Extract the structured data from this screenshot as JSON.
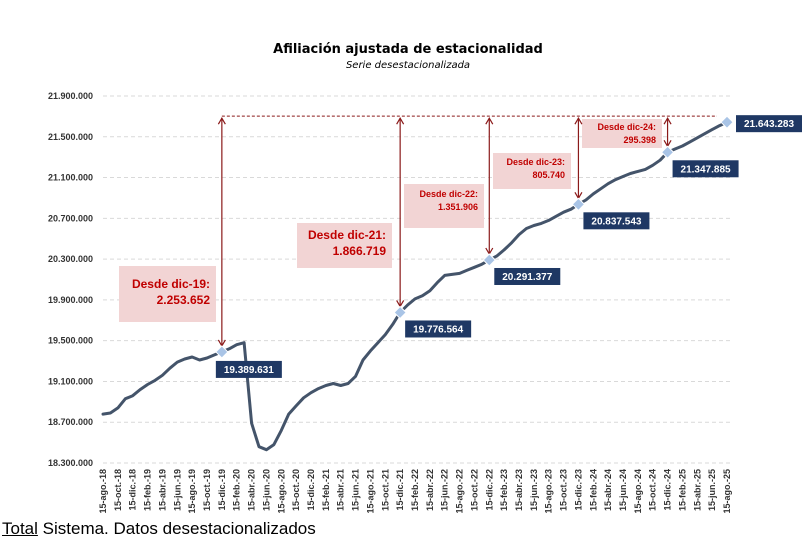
{
  "footer": {
    "first_word": "Total",
    "rest": " Sistema. Datos desestacionalizados"
  },
  "chart_data": {
    "type": "line",
    "title": "Afiliación ajustada de estacionalidad",
    "subtitle": "Serie desestacionalizada",
    "ylim": [
      18300000,
      21900000
    ],
    "yticks": [
      18300000,
      18700000,
      19100000,
      19500000,
      19900000,
      20300000,
      20700000,
      21100000,
      21500000,
      21900000
    ],
    "ytick_labels": [
      "18.300.000",
      "18.700.000",
      "19.100.000",
      "19.500.000",
      "19.900.000",
      "20.300.000",
      "20.700.000",
      "21.100.000",
      "21.500.000",
      "21.900.000"
    ],
    "grid": "horizontal-dashed",
    "x_start": "2018-08-15",
    "xtick_labels": [
      "15-ago.-18",
      "15-oct.-18",
      "15-dic.-18",
      "15-feb.-19",
      "15-abr.-19",
      "15-jun.-19",
      "15-ago.-19",
      "15-oct.-19",
      "15-dic.-19",
      "15-feb.-20",
      "15-abr.-20",
      "15-jun.-20",
      "15-ago.-20",
      "15-oct.-20",
      "15-dic.-20",
      "15-feb.-21",
      "15-abr.-21",
      "15-jun.-21",
      "15-ago.-21",
      "15-oct.-21",
      "15-dic.-21",
      "15-feb.-22",
      "15-abr.-22",
      "15-jun.-22",
      "15-ago.-22",
      "15-oct.-22",
      "15-dic.-22",
      "15-feb.-23",
      "15-abr.-23",
      "15-jun.-23",
      "15-ago.-23",
      "15-oct.-23",
      "15-dic.-23",
      "15-feb.-24",
      "15-abr.-24",
      "15-jun.-24",
      "15-ago.-24",
      "15-oct.-24",
      "15-dic.-24",
      "15-feb.-25",
      "15-abr.-25",
      "15-jun.-25",
      "15-ago.-25"
    ],
    "series": [
      {
        "color": "#44546a",
        "points": [
          [
            "2018-08-15",
            18780000
          ],
          [
            "2018-09-15",
            18790000
          ],
          [
            "2018-10-15",
            18840000
          ],
          [
            "2018-11-15",
            18930000
          ],
          [
            "2018-12-15",
            18960000
          ],
          [
            "2019-01-15",
            19020000
          ],
          [
            "2019-02-15",
            19070000
          ],
          [
            "2019-03-15",
            19110000
          ],
          [
            "2019-04-15",
            19160000
          ],
          [
            "2019-05-15",
            19230000
          ],
          [
            "2019-06-15",
            19290000
          ],
          [
            "2019-07-15",
            19320000
          ],
          [
            "2019-08-15",
            19340000
          ],
          [
            "2019-09-15",
            19310000
          ],
          [
            "2019-10-15",
            19330000
          ],
          [
            "2019-11-15",
            19360000
          ],
          [
            "2019-12-15",
            19389631
          ],
          [
            "2020-01-15",
            19420000
          ],
          [
            "2020-02-15",
            19460000
          ],
          [
            "2020-03-15",
            19480000
          ],
          [
            "2020-04-15",
            18690000
          ],
          [
            "2020-05-15",
            18460000
          ],
          [
            "2020-06-15",
            18430000
          ],
          [
            "2020-07-15",
            18480000
          ],
          [
            "2020-08-15",
            18620000
          ],
          [
            "2020-09-15",
            18780000
          ],
          [
            "2020-10-15",
            18860000
          ],
          [
            "2020-11-15",
            18940000
          ],
          [
            "2020-12-15",
            18990000
          ],
          [
            "2021-01-15",
            19030000
          ],
          [
            "2021-02-15",
            19060000
          ],
          [
            "2021-03-15",
            19080000
          ],
          [
            "2021-04-15",
            19060000
          ],
          [
            "2021-05-15",
            19080000
          ],
          [
            "2021-06-15",
            19150000
          ],
          [
            "2021-07-15",
            19310000
          ],
          [
            "2021-08-15",
            19400000
          ],
          [
            "2021-09-15",
            19480000
          ],
          [
            "2021-10-15",
            19560000
          ],
          [
            "2021-11-15",
            19660000
          ],
          [
            "2021-12-15",
            19776564
          ],
          [
            "2022-01-15",
            19850000
          ],
          [
            "2022-02-15",
            19910000
          ],
          [
            "2022-03-15",
            19940000
          ],
          [
            "2022-04-15",
            19990000
          ],
          [
            "2022-05-15",
            20070000
          ],
          [
            "2022-06-15",
            20140000
          ],
          [
            "2022-07-15",
            20150000
          ],
          [
            "2022-08-15",
            20160000
          ],
          [
            "2022-09-15",
            20190000
          ],
          [
            "2022-10-15",
            20220000
          ],
          [
            "2022-11-15",
            20250000
          ],
          [
            "2022-12-15",
            20291377
          ],
          [
            "2023-01-15",
            20330000
          ],
          [
            "2023-02-15",
            20390000
          ],
          [
            "2023-03-15",
            20460000
          ],
          [
            "2023-04-15",
            20540000
          ],
          [
            "2023-05-15",
            20600000
          ],
          [
            "2023-06-15",
            20630000
          ],
          [
            "2023-07-15",
            20650000
          ],
          [
            "2023-08-15",
            20680000
          ],
          [
            "2023-09-15",
            20720000
          ],
          [
            "2023-10-15",
            20760000
          ],
          [
            "2023-11-15",
            20790000
          ],
          [
            "2023-12-15",
            20837543
          ],
          [
            "2024-01-15",
            20880000
          ],
          [
            "2024-02-15",
            20940000
          ],
          [
            "2024-03-15",
            20990000
          ],
          [
            "2024-04-15",
            21040000
          ],
          [
            "2024-05-15",
            21080000
          ],
          [
            "2024-06-15",
            21110000
          ],
          [
            "2024-07-15",
            21140000
          ],
          [
            "2024-08-15",
            21160000
          ],
          [
            "2024-09-15",
            21180000
          ],
          [
            "2024-10-15",
            21220000
          ],
          [
            "2024-11-15",
            21270000
          ],
          [
            "2024-12-15",
            21347885
          ],
          [
            "2025-01-15",
            21380000
          ],
          [
            "2025-02-15",
            21410000
          ],
          [
            "2025-03-15",
            21450000
          ],
          [
            "2025-04-15",
            21490000
          ],
          [
            "2025-05-15",
            21530000
          ],
          [
            "2025-06-15",
            21570000
          ],
          [
            "2025-07-15",
            21610000
          ],
          [
            "2025-08-15",
            21643283
          ]
        ]
      }
    ],
    "reference_line": {
      "value": 21643283,
      "style": "dashed",
      "color": "#8b1a1a"
    },
    "markers": [
      {
        "date": "2019-12-15",
        "value": 19389631,
        "label": "19.389.631",
        "since_label": "Desde dic-19:",
        "since_value": "2.253.652"
      },
      {
        "date": "2021-12-15",
        "value": 19776564,
        "label": "19.776.564",
        "since_label": "Desde dic-21:",
        "since_value": "1.866.719"
      },
      {
        "date": "2022-12-15",
        "value": 20291377,
        "label": "20.291.377",
        "since_label": "Desde dic-22:",
        "since_value": "1.351.906"
      },
      {
        "date": "2023-12-15",
        "value": 20837543,
        "label": "20.837.543",
        "since_label": "Desde dic-23:",
        "since_value": "805.740"
      },
      {
        "date": "2024-12-15",
        "value": 21347885,
        "label": "21.347.885",
        "since_label": "Desde dic-24:",
        "since_value": "295.398"
      },
      {
        "date": "2025-08-15",
        "value": 21643283,
        "label": "21.643.283"
      }
    ],
    "colors": {
      "line": "#44546a",
      "marker": "#a9c4e6",
      "value_box": "#1f3864",
      "annotation_fill": "#f2d4d4",
      "annotation_text": "#c00000",
      "arrow": "#8b1a1a",
      "grid": "#d9d9d9"
    }
  }
}
